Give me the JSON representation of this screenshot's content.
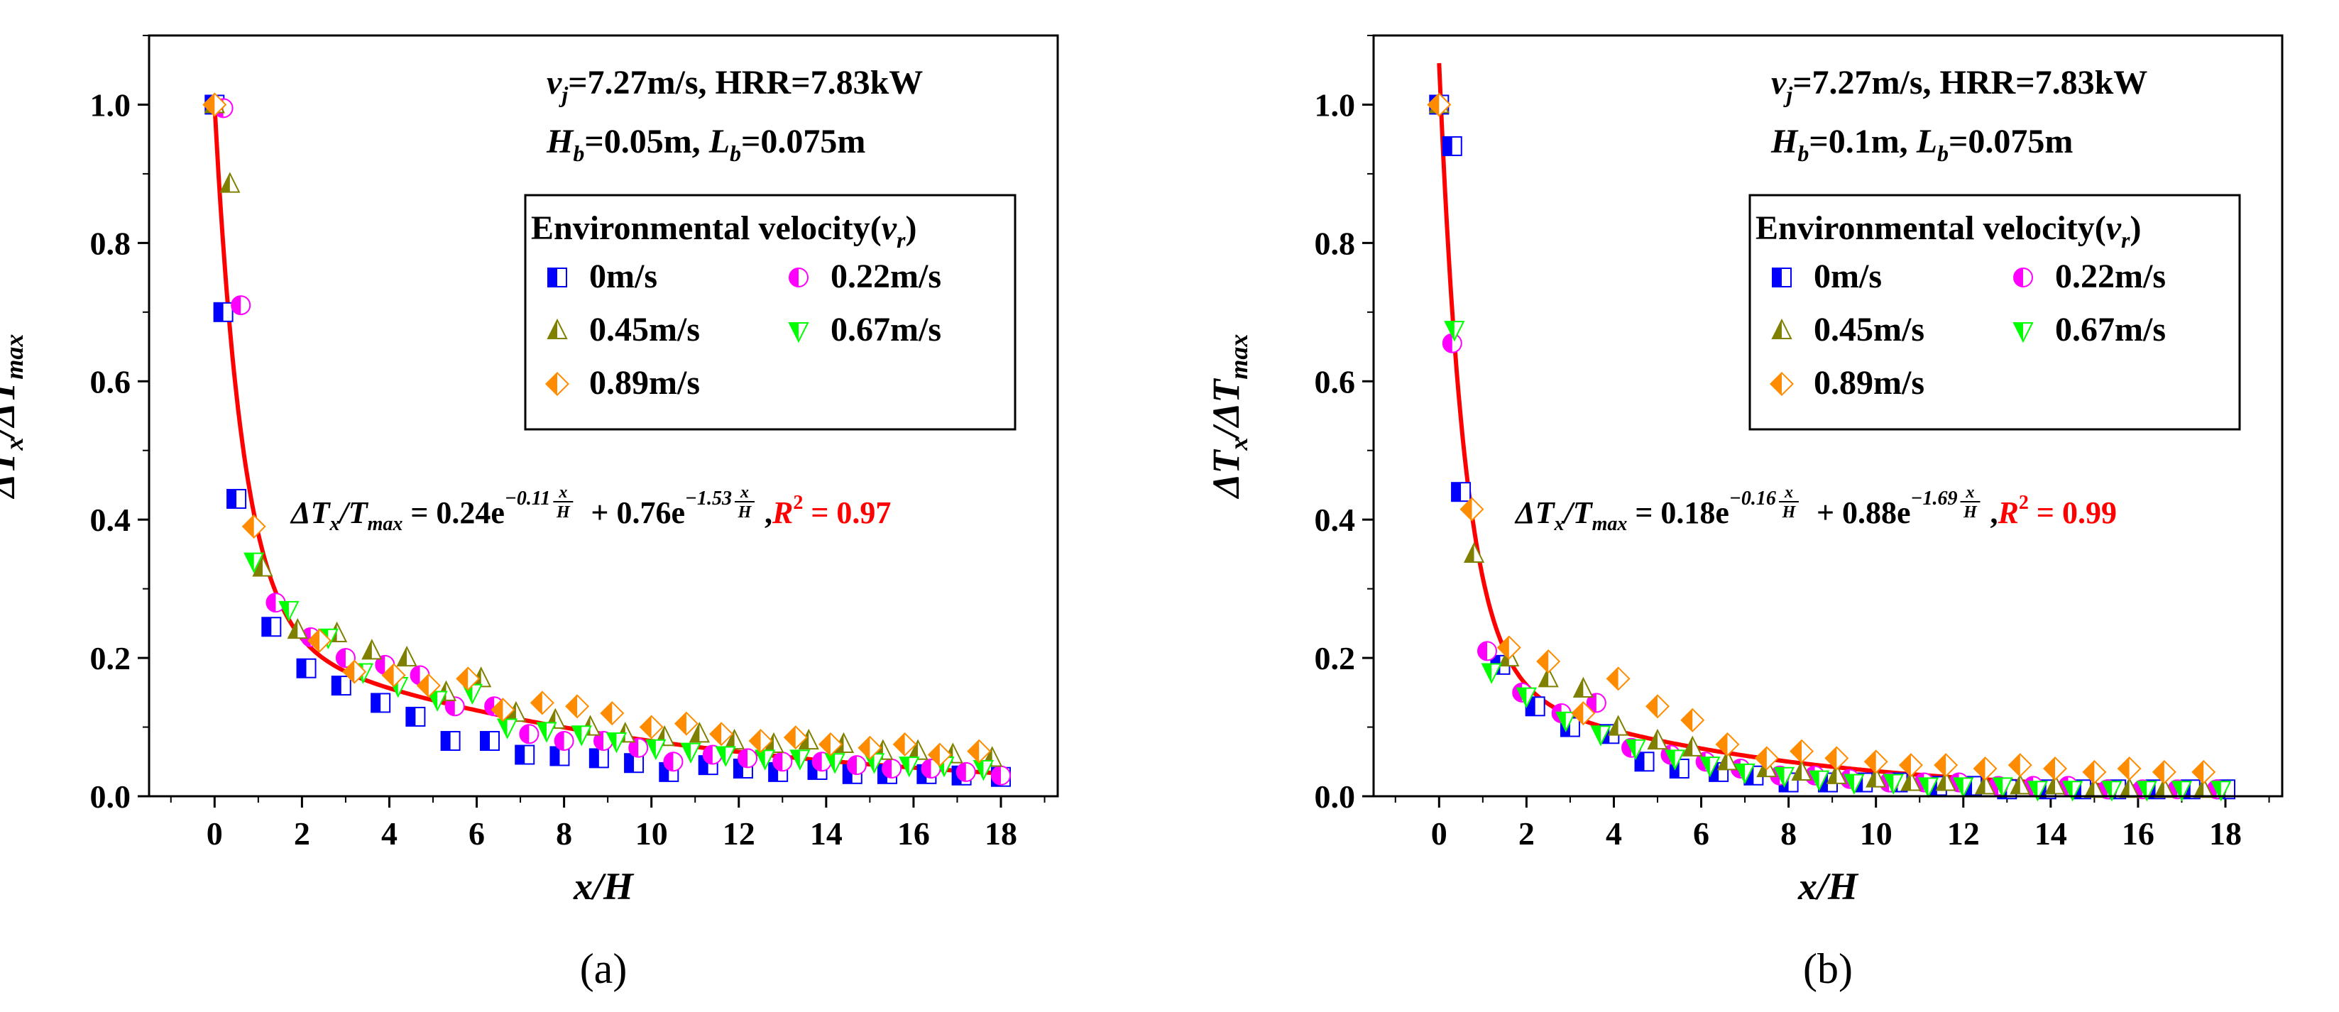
{
  "chart_data": [
    {
      "type": "scatter",
      "panel_label": "(a)",
      "xlabel": "x/H",
      "ylabel_parts": {
        "delta1": "ΔT",
        "sub1": "x",
        "slash": "/ΔT",
        "sub2": "max"
      },
      "xlim": [
        -1.5,
        19.3
      ],
      "ylim": [
        0,
        1.1
      ],
      "xticks": [
        0,
        2,
        4,
        6,
        8,
        10,
        12,
        14,
        16,
        18
      ],
      "yticks": [
        0.0,
        0.2,
        0.4,
        0.6,
        0.8,
        1.0
      ],
      "yticklabels": [
        "0.0",
        "0.2",
        "0.4",
        "0.6",
        "0.8",
        "1.0"
      ],
      "annotations": {
        "line1": {
          "v": "v",
          "sub": "j",
          "rest": "=7.27m/s, HRR=7.83kW"
        },
        "line2": {
          "h": "H",
          "hsub": "b",
          "hval": "=0.05m, ",
          "l": "L",
          "lsub": "b",
          "lval": "=0.075m"
        }
      },
      "legend": {
        "title_main": "Environmental velocity(",
        "title_sym": "v",
        "title_sub": "r",
        "title_close": ")",
        "entries": [
          "0m/s",
          "0.22m/s",
          "0.45m/s",
          "0.67m/s",
          "0.89m/s"
        ]
      },
      "equation": {
        "lhs1": "ΔT",
        "lhs_sub1": "x",
        "lhs2": "/T",
        "lhs_sub2": "max",
        "c1": " = 0.24e",
        "exp1": "−0.11",
        "c2": " + 0.76e",
        "exp2": "−1.53",
        "frac_num": "x",
        "frac_den": "H",
        "r2_sym": "R",
        "r2_sup": "2",
        "r2_val": " = 0.97",
        "comma": ","
      },
      "fit": {
        "a": 0.24,
        "b": 0.11,
        "c": 0.76,
        "d": 1.53,
        "color": "#ff0000"
      },
      "series": [
        {
          "name": "0m/s",
          "marker": "square",
          "color": "#0000ff",
          "x": [
            0,
            0.2,
            0.5,
            1.3,
            2.1,
            2.9,
            3.8,
            4.6,
            5.4,
            6.3,
            7.1,
            7.9,
            8.8,
            9.6,
            10.4,
            11.3,
            12.1,
            12.9,
            13.8,
            14.6,
            15.4,
            16.3,
            17.1,
            18
          ],
          "y": [
            1.0,
            0.7,
            0.43,
            0.245,
            0.185,
            0.16,
            0.135,
            0.115,
            0.08,
            0.08,
            0.06,
            0.058,
            0.055,
            0.048,
            0.035,
            0.045,
            0.04,
            0.035,
            0.038,
            0.032,
            0.032,
            0.032,
            0.03,
            0.028
          ]
        },
        {
          "name": "0.22m/s",
          "marker": "circle",
          "color": "#ff00ff",
          "x": [
            0.2,
            0.6,
            1.4,
            2.2,
            3.0,
            3.9,
            4.7,
            5.5,
            6.4,
            7.2,
            8.0,
            8.9,
            9.7,
            10.5,
            11.4,
            12.2,
            13.0,
            13.9,
            14.7,
            15.5,
            16.4,
            17.2,
            18
          ],
          "y": [
            0.995,
            0.71,
            0.28,
            0.23,
            0.2,
            0.19,
            0.175,
            0.13,
            0.13,
            0.09,
            0.08,
            0.08,
            0.07,
            0.05,
            0.06,
            0.055,
            0.05,
            0.05,
            0.045,
            0.04,
            0.04,
            0.035,
            0.03
          ]
        },
        {
          "name": "0.45m/s",
          "marker": "triangle-up",
          "color": "#808000",
          "x": [
            0,
            0.35,
            1.1,
            1.9,
            2.8,
            3.6,
            4.4,
            5.3,
            6.1,
            6.9,
            7.8,
            8.6,
            9.4,
            10.3,
            11.1,
            11.9,
            12.8,
            13.6,
            14.4,
            15.3,
            16.1,
            16.9,
            17.8
          ],
          "y": [
            1.0,
            0.885,
            0.33,
            0.24,
            0.235,
            0.21,
            0.2,
            0.15,
            0.17,
            0.12,
            0.11,
            0.1,
            0.09,
            0.085,
            0.09,
            0.08,
            0.075,
            0.08,
            0.075,
            0.065,
            0.065,
            0.06,
            0.055
          ]
        },
        {
          "name": "0.67m/s",
          "marker": "triangle-down",
          "color": "#00ff00",
          "x": [
            0.9,
            1.7,
            2.6,
            3.4,
            4.2,
            5.1,
            5.9,
            6.7,
            7.6,
            8.4,
            9.2,
            10.1,
            10.9,
            11.7,
            12.6,
            13.4,
            14.2,
            15.1,
            15.9,
            16.7,
            17.6
          ],
          "y": [
            0.34,
            0.27,
            0.23,
            0.18,
            0.16,
            0.14,
            0.15,
            0.1,
            0.095,
            0.09,
            0.08,
            0.07,
            0.065,
            0.06,
            0.055,
            0.055,
            0.05,
            0.05,
            0.045,
            0.045,
            0.04
          ]
        },
        {
          "name": "0.89m/s",
          "marker": "diamond",
          "color": "#ff8c00",
          "x": [
            0,
            0.9,
            2.4,
            3.2,
            4.1,
            4.9,
            5.8,
            6.6,
            7.5,
            8.3,
            9.1,
            10.0,
            10.8,
            11.6,
            12.5,
            13.3,
            14.1,
            15.0,
            15.8,
            16.6,
            17.5
          ],
          "y": [
            1.0,
            0.39,
            0.225,
            0.18,
            0.175,
            0.16,
            0.17,
            0.125,
            0.135,
            0.13,
            0.12,
            0.1,
            0.105,
            0.09,
            0.08,
            0.085,
            0.075,
            0.07,
            0.075,
            0.06,
            0.065
          ]
        }
      ]
    },
    {
      "type": "scatter",
      "panel_label": "(b)",
      "xlabel": "x/H",
      "ylabel_parts": {
        "delta1": "ΔT",
        "sub1": "x",
        "slash": "/ΔT",
        "sub2": "max"
      },
      "xlim": [
        -1.5,
        19.3
      ],
      "ylim": [
        0,
        1.1
      ],
      "xticks": [
        0,
        2,
        4,
        6,
        8,
        10,
        12,
        14,
        16,
        18
      ],
      "yticks": [
        0.0,
        0.2,
        0.4,
        0.6,
        0.8,
        1.0
      ],
      "yticklabels": [
        "0.0",
        "0.2",
        "0.4",
        "0.6",
        "0.8",
        "1.0"
      ],
      "annotations": {
        "line1": {
          "v": "v",
          "sub": "j",
          "rest": "=7.27m/s, HRR=7.83kW"
        },
        "line2": {
          "h": "H",
          "hsub": "b",
          "hval": "=0.1m, ",
          "l": "L",
          "lsub": "b",
          "lval": "=0.075m"
        }
      },
      "legend": {
        "title_main": "Environmental velocity(",
        "title_sym": "v",
        "title_sub": "r",
        "title_close": ")",
        "entries": [
          "0m/s",
          "0.22m/s",
          "0.45m/s",
          "0.67m/s",
          "0.89m/s"
        ]
      },
      "equation": {
        "lhs1": "ΔT",
        "lhs_sub1": "x",
        "lhs2": "/T",
        "lhs_sub2": "max",
        "c1": " = 0.18e",
        "exp1": "−0.16",
        "c2": " + 0.88e",
        "exp2": "−1.69",
        "frac_num": "x",
        "frac_den": "H",
        "r2_sym": "R",
        "r2_sup": "2",
        "r2_val": " = 0.99",
        "comma": ","
      },
      "fit": {
        "a": 0.18,
        "b": 0.16,
        "c": 0.88,
        "d": 1.69,
        "color": "#ff0000"
      },
      "series": [
        {
          "name": "0m/s",
          "marker": "square",
          "color": "#0000ff",
          "x": [
            0,
            0.3,
            0.5,
            1.4,
            2.2,
            3.0,
            3.9,
            4.7,
            5.5,
            6.4,
            7.2,
            8.0,
            8.9,
            9.7,
            10.5,
            11.4,
            12.2,
            13.0,
            13.9,
            14.7,
            15.5,
            16.4,
            17.2,
            18
          ],
          "y": [
            1.0,
            0.94,
            0.44,
            0.19,
            0.13,
            0.1,
            0.09,
            0.05,
            0.04,
            0.035,
            0.03,
            0.02,
            0.02,
            0.02,
            0.02,
            0.015,
            0.015,
            0.01,
            0.01,
            0.01,
            0.01,
            0.01,
            0.01,
            0.01
          ]
        },
        {
          "name": "0.22m/s",
          "marker": "circle",
          "color": "#ff00ff",
          "x": [
            0.3,
            1.1,
            1.9,
            2.8,
            3.6,
            4.4,
            5.3,
            6.1,
            6.9,
            7.8,
            8.6,
            9.4,
            10.3,
            11.1,
            11.9,
            12.8,
            13.6,
            14.4,
            15.3,
            16.1,
            16.9,
            17.8
          ],
          "y": [
            0.655,
            0.21,
            0.15,
            0.12,
            0.135,
            0.07,
            0.06,
            0.05,
            0.04,
            0.03,
            0.03,
            0.025,
            0.02,
            0.02,
            0.02,
            0.015,
            0.015,
            0.015,
            0.01,
            0.01,
            0.01,
            0.01
          ]
        },
        {
          "name": "0.45m/s",
          "marker": "triangle-up",
          "color": "#808000",
          "x": [
            0,
            0.8,
            1.6,
            2.5,
            3.3,
            4.1,
            5.0,
            5.8,
            6.6,
            7.5,
            8.3,
            9.1,
            10.0,
            10.8,
            11.6,
            12.5,
            13.3,
            14.1,
            15.0,
            15.8,
            16.6,
            17.5
          ],
          "y": [
            1.0,
            0.35,
            0.2,
            0.17,
            0.155,
            0.1,
            0.08,
            0.07,
            0.05,
            0.04,
            0.035,
            0.03,
            0.025,
            0.02,
            0.02,
            0.015,
            0.015,
            0.015,
            0.01,
            0.01,
            0.01,
            0.01
          ]
        },
        {
          "name": "0.67m/s",
          "marker": "triangle-down",
          "color": "#00ff00",
          "x": [
            0.35,
            1.2,
            2.0,
            2.9,
            3.7,
            4.5,
            5.4,
            6.2,
            7.0,
            7.9,
            8.7,
            9.5,
            10.4,
            11.2,
            12.0,
            12.9,
            13.7,
            14.5,
            15.4,
            16.2,
            17.0,
            17.9
          ],
          "y": [
            0.675,
            0.18,
            0.145,
            0.11,
            0.09,
            0.07,
            0.055,
            0.045,
            0.035,
            0.03,
            0.025,
            0.02,
            0.02,
            0.015,
            0.015,
            0.015,
            0.01,
            0.01,
            0.01,
            0.01,
            0.01,
            0.01
          ]
        },
        {
          "name": "0.89m/s",
          "marker": "diamond",
          "color": "#ff8c00",
          "x": [
            0,
            0.75,
            1.6,
            2.5,
            3.3,
            4.1,
            5.0,
            5.8,
            6.6,
            7.5,
            8.3,
            9.1,
            10.0,
            10.8,
            11.6,
            12.5,
            13.3,
            14.1,
            15.0,
            15.8,
            16.6,
            17.5
          ],
          "y": [
            1.0,
            0.415,
            0.215,
            0.195,
            0.12,
            0.17,
            0.13,
            0.11,
            0.075,
            0.055,
            0.065,
            0.055,
            0.05,
            0.045,
            0.045,
            0.04,
            0.045,
            0.04,
            0.035,
            0.04,
            0.035,
            0.035
          ]
        }
      ]
    }
  ]
}
